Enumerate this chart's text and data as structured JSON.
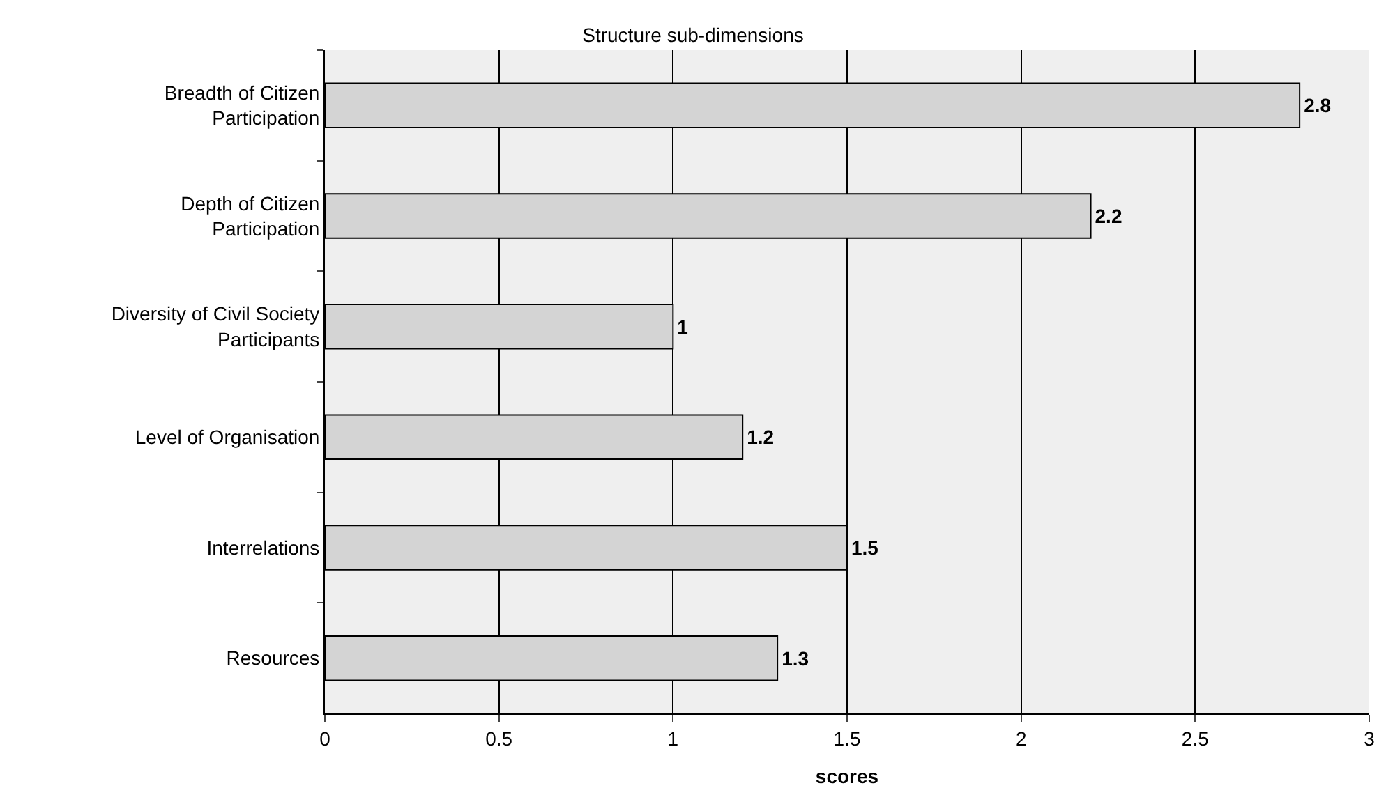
{
  "chart_data": {
    "type": "bar",
    "orientation": "horizontal",
    "title": "Structure sub-dimensions",
    "xlabel": "scores",
    "categories": [
      "Breadth of Citizen Participation",
      "Depth of Citizen Participation",
      "Diversity of Civil Society Participants",
      "Level of Organisation",
      "Interrelations",
      "Resources"
    ],
    "values": [
      2.8,
      2.2,
      1,
      1.2,
      1.5,
      1.3
    ],
    "color": "#d4d4d4",
    "xlim": [
      0,
      3
    ],
    "xticks": [
      0,
      0.5,
      1,
      1.5,
      2,
      2.5,
      3
    ],
    "grid": "x",
    "data_labels": true,
    "legend": false
  }
}
